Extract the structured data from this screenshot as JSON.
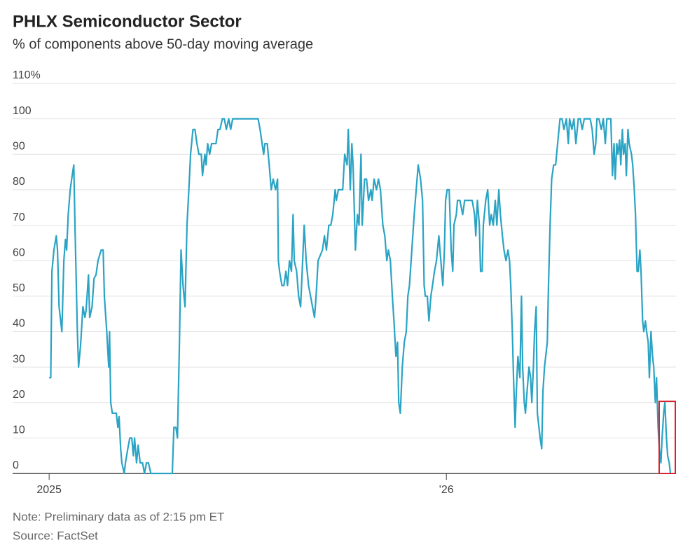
{
  "chart_data": {
    "type": "line",
    "title": "PHLX Semiconductor Sector",
    "subtitle": "% of components above 50-day moving average",
    "note": "Note: Preliminary data as of 2:15 pm ET",
    "source": "Source: FactSet",
    "color": "#2aa3c4",
    "grid": true,
    "ylim": [
      0,
      110
    ],
    "yticks": [
      0,
      10,
      20,
      30,
      40,
      50,
      60,
      70,
      80,
      90,
      100,
      {
        "value": 110,
        "label": "110%"
      }
    ],
    "xlim": [
      2024.908,
      2026.578
    ],
    "xticks": [
      2025,
      {
        "value": 2026,
        "label": "'26"
      }
    ],
    "x": [
      2025.0,
      2025.004,
      2025.007,
      2025.012,
      2025.018,
      2025.021,
      2025.025,
      2025.032,
      2025.037,
      2025.041,
      2025.044,
      2025.048,
      2025.053,
      2025.058,
      2025.062,
      2025.065,
      2025.071,
      2025.074,
      2025.079,
      2025.085,
      2025.09,
      2025.093,
      2025.099,
      2025.102,
      2025.108,
      2025.113,
      2025.118,
      2025.123,
      2025.131,
      2025.136,
      2025.139,
      2025.145,
      2025.15,
      2025.152,
      2025.155,
      2025.159,
      2025.169,
      2025.173,
      2025.176,
      2025.18,
      2025.183,
      2025.189,
      2025.192,
      2025.198,
      2025.203,
      2025.208,
      2025.212,
      2025.215,
      2025.22,
      2025.224,
      2025.229,
      2025.235,
      2025.24,
      2025.245,
      2025.25,
      2025.256,
      2025.31,
      2025.314,
      2025.319,
      2025.323,
      2025.328,
      2025.332,
      2025.337,
      2025.342,
      2025.347,
      2025.353,
      2025.356,
      2025.362,
      2025.367,
      2025.372,
      2025.377,
      2025.383,
      2025.386,
      2025.392,
      2025.395,
      2025.399,
      2025.404,
      2025.409,
      2025.42,
      2025.425,
      2025.43,
      2025.436,
      2025.441,
      2025.446,
      2025.452,
      2025.457,
      2025.462,
      2025.526,
      2025.531,
      2025.536,
      2025.54,
      2025.543,
      2025.549,
      2025.554,
      2025.559,
      2025.564,
      2025.57,
      2025.575,
      2025.577,
      2025.58,
      2025.586,
      2025.591,
      2025.596,
      2025.6,
      2025.605,
      2025.61,
      2025.614,
      2025.617,
      2025.623,
      2025.628,
      2025.633,
      2025.637,
      2025.642,
      2025.647,
      2025.653,
      2025.658,
      2025.663,
      2025.668,
      2025.672,
      2025.677,
      2025.688,
      2025.693,
      2025.698,
      2025.704,
      2025.709,
      2025.714,
      2025.72,
      2025.723,
      2025.728,
      2025.739,
      2025.744,
      2025.75,
      2025.753,
      2025.758,
      2025.762,
      2025.765,
      2025.771,
      2025.776,
      2025.78,
      2025.785,
      2025.788,
      2025.794,
      2025.799,
      2025.804,
      2025.81,
      2025.813,
      2025.818,
      2025.824,
      2025.829,
      2025.834,
      2025.84,
      2025.845,
      2025.85,
      2025.854,
      2025.859,
      2025.864,
      2025.868,
      2025.873,
      2025.877,
      2025.88,
      2025.884,
      2025.889,
      2025.894,
      2025.899,
      2025.903,
      2025.907,
      2025.913,
      2025.919,
      2025.924,
      2025.929,
      2025.935,
      2025.94,
      2025.944,
      2025.947,
      2025.952,
      2025.956,
      2025.961,
      2025.965,
      2025.97,
      2025.975,
      2025.981,
      2025.986,
      2025.991,
      2025.995,
      2025.998,
      2026.002,
      2026.007,
      2026.012,
      2026.016,
      2026.019,
      2026.025,
      2026.028,
      2026.034,
      2026.041,
      2026.046,
      2026.065,
      2026.071,
      2026.074,
      2026.078,
      2026.083,
      2026.086,
      2026.09,
      2026.093,
      2026.099,
      2026.104,
      2026.109,
      2026.113,
      2026.118,
      2026.123,
      2026.127,
      2026.132,
      2026.136,
      2026.141,
      2026.145,
      2026.15,
      2026.155,
      2026.159,
      2026.162,
      2026.166,
      2026.169,
      2026.173,
      2026.176,
      2026.18,
      2026.185,
      2026.189,
      2026.192,
      2026.196,
      2026.199,
      2026.203,
      2026.208,
      2026.212,
      2026.215,
      2026.219,
      2026.222,
      2026.226,
      2026.229,
      2026.233,
      2026.236,
      2026.24,
      2026.243,
      2026.247,
      2026.25,
      2026.254,
      2026.257,
      2026.261,
      2026.265,
      2026.27,
      2026.275,
      2026.28,
      2026.286,
      2026.291,
      2026.296,
      2026.302,
      2026.307,
      2026.31,
      2026.316,
      2026.321,
      2026.326,
      2026.332,
      2026.337,
      2026.342,
      2026.347,
      2026.362,
      2026.367,
      2026.372,
      2026.376,
      2026.379,
      2026.384,
      2026.39,
      2026.395,
      2026.4,
      2026.404,
      2026.414,
      2026.418,
      2026.422,
      2026.425,
      2026.429,
      2026.432,
      2026.436,
      2026.439,
      2026.443,
      2026.446,
      2026.45,
      2026.453,
      2026.457,
      2026.46,
      2026.466,
      2026.469,
      2026.473,
      2026.476,
      2026.48,
      2026.483,
      2026.487,
      2026.49,
      2026.494,
      2026.497,
      2026.501,
      2026.504,
      2026.508,
      2026.511,
      2026.515,
      2026.519,
      2026.522,
      2026.526,
      2026.529,
      2026.533,
      2026.536,
      2026.54,
      2026.543,
      2026.547,
      2026.55,
      2026.554,
      2026.557,
      2026.561,
      2026.564
    ],
    "values": [
      27,
      27,
      57,
      63,
      67,
      63,
      47,
      40,
      60,
      66,
      63,
      73,
      80,
      84,
      87,
      70,
      40,
      30,
      36,
      47,
      44,
      46,
      56,
      44,
      47,
      55,
      56,
      60,
      63,
      63,
      50,
      40,
      30,
      40,
      20,
      17,
      17,
      13,
      16,
      7,
      3,
      0,
      3,
      7,
      10,
      10,
      5,
      10,
      3,
      8,
      3,
      3,
      0,
      3,
      3,
      0,
      0,
      13,
      13,
      10,
      37,
      63,
      53,
      47,
      70,
      83,
      90,
      97,
      97,
      93,
      90,
      90,
      84,
      90,
      87,
      93,
      90,
      93,
      93,
      97,
      97,
      100,
      100,
      97,
      100,
      97,
      100,
      100,
      97,
      93,
      90,
      93,
      93,
      87,
      80,
      83,
      80,
      83,
      60,
      57,
      53,
      53,
      57,
      53,
      60,
      57,
      73,
      60,
      57,
      50,
      47,
      57,
      70,
      60,
      53,
      50,
      47,
      44,
      50,
      60,
      63,
      67,
      63,
      70,
      70,
      73,
      80,
      77,
      80,
      80,
      90,
      87,
      97,
      80,
      93,
      87,
      63,
      73,
      70,
      90,
      70,
      83,
      83,
      77,
      80,
      77,
      83,
      80,
      83,
      80,
      70,
      67,
      60,
      63,
      60,
      50,
      43,
      33,
      37,
      20,
      17,
      30,
      37,
      40,
      50,
      53,
      63,
      73,
      80,
      87,
      83,
      77,
      53,
      50,
      50,
      43,
      50,
      53,
      57,
      60,
      67,
      60,
      53,
      63,
      77,
      80,
      80,
      63,
      57,
      70,
      73,
      77,
      77,
      73,
      77,
      77,
      73,
      67,
      77,
      70,
      57,
      57,
      70,
      77,
      80,
      70,
      73,
      70,
      77,
      70,
      80,
      73,
      67,
      63,
      60,
      63,
      60,
      53,
      40,
      27,
      13,
      23,
      33,
      27,
      50,
      30,
      20,
      17,
      23,
      30,
      27,
      20,
      30,
      40,
      47,
      17,
      13,
      10,
      7,
      23,
      30,
      33,
      37,
      53,
      70,
      83,
      87,
      87,
      93,
      100,
      100,
      97,
      100,
      93,
      100,
      97,
      100,
      93,
      100,
      100,
      97,
      100,
      100,
      97,
      90,
      93,
      100,
      100,
      97,
      100,
      93,
      100,
      100,
      84,
      93,
      83,
      93,
      90,
      94,
      87,
      97,
      90,
      93,
      84,
      97,
      93,
      90,
      87,
      80,
      73,
      57,
      57,
      63,
      57,
      43,
      40,
      43,
      40,
      37,
      27,
      40,
      33,
      30,
      20,
      27,
      13,
      7,
      3,
      10,
      17,
      20,
      10,
      5,
      3,
      0
    ]
  }
}
